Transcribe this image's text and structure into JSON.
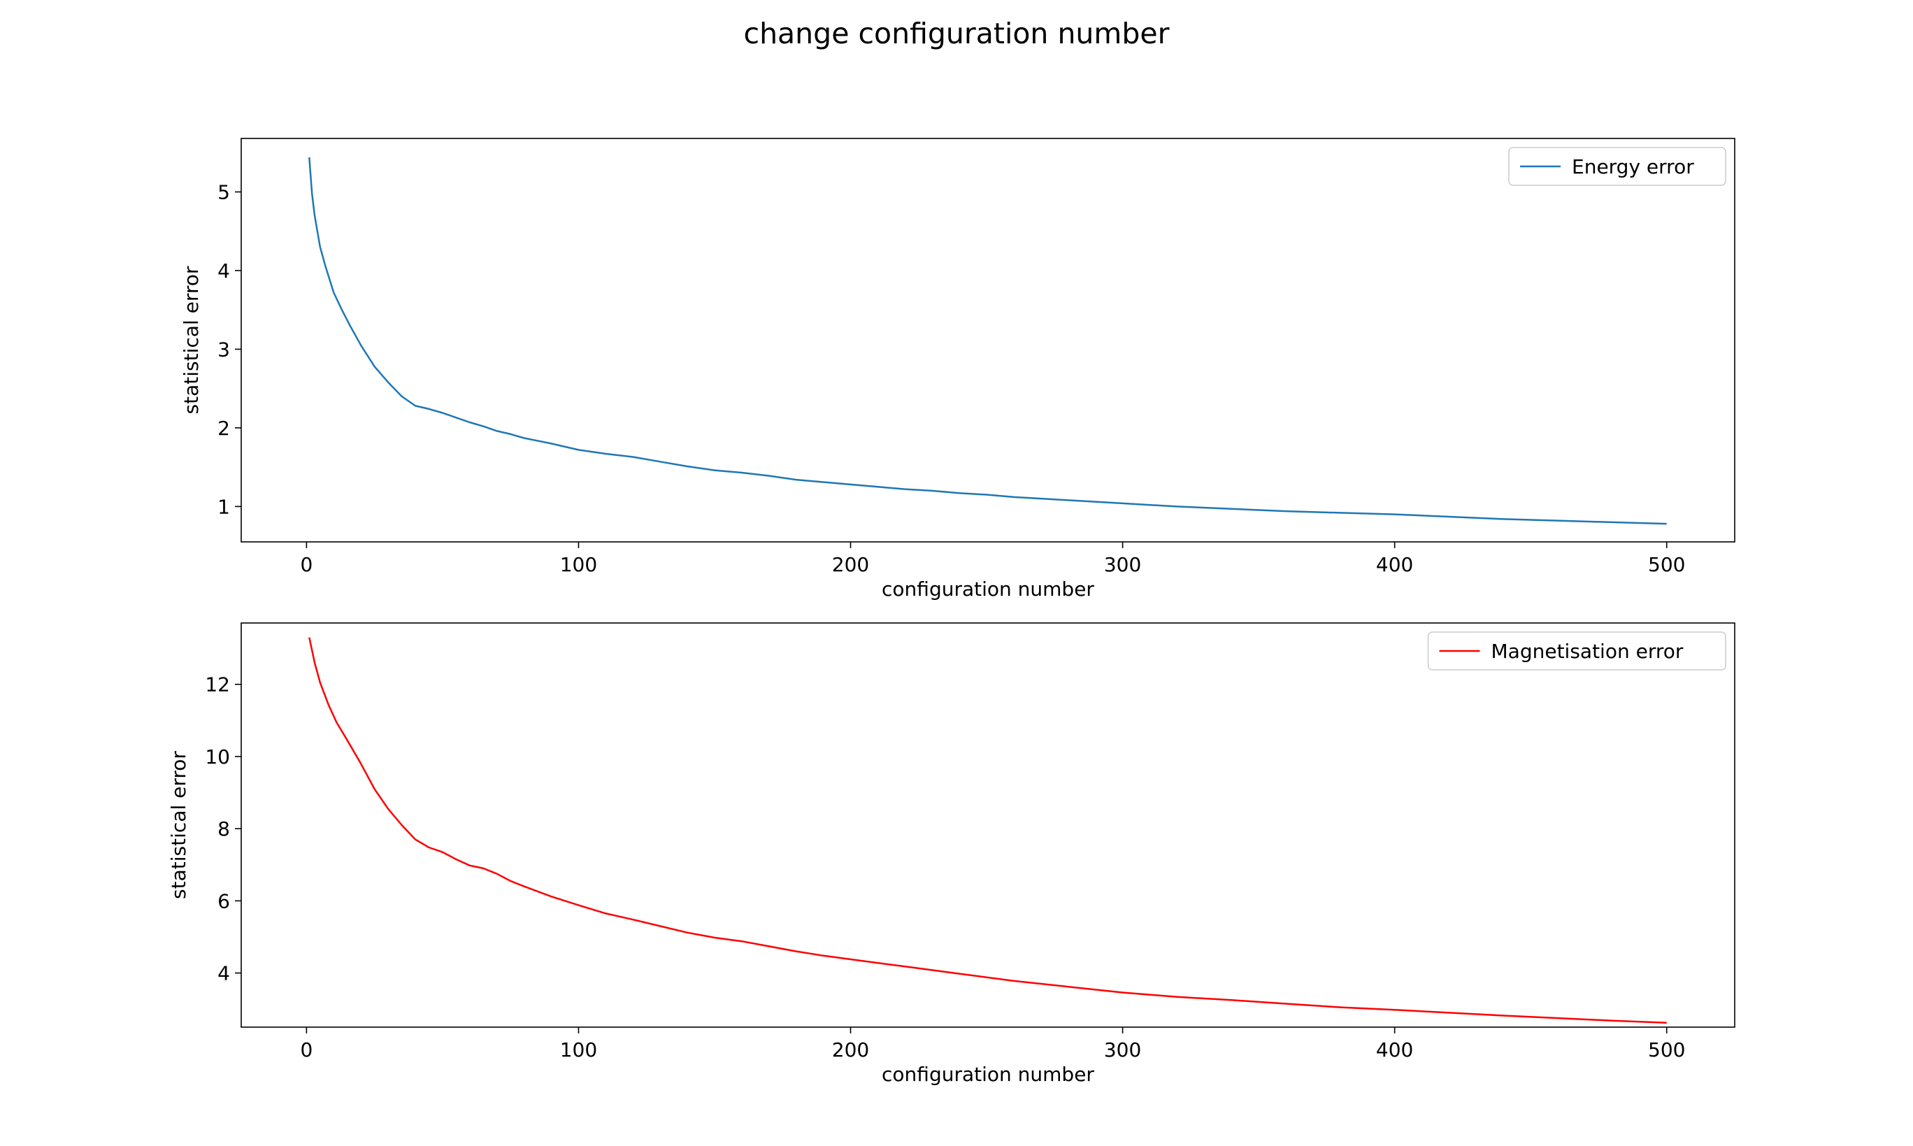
{
  "figure": {
    "title": "change configuration number"
  },
  "chart_data": [
    {
      "type": "line",
      "xlabel": "configuration number",
      "ylabel": "statistical error",
      "xlim": [
        -24,
        525
      ],
      "ylim": [
        0.55,
        5.68
      ],
      "xticks": [
        0,
        100,
        200,
        300,
        400,
        500
      ],
      "yticks": [
        1,
        2,
        3,
        4,
        5
      ],
      "grid": false,
      "legend_position": "top-right",
      "series": [
        {
          "name": "Energy error",
          "color": "#1f77b4",
          "x": [
            1,
            2,
            3,
            5,
            7,
            10,
            13,
            16,
            20,
            25,
            30,
            35,
            40,
            45,
            50,
            55,
            60,
            65,
            70,
            75,
            80,
            90,
            100,
            110,
            120,
            130,
            140,
            150,
            160,
            170,
            180,
            190,
            200,
            210,
            220,
            230,
            240,
            250,
            260,
            270,
            280,
            290,
            300,
            320,
            340,
            360,
            380,
            400,
            420,
            440,
            460,
            480,
            500
          ],
          "y": [
            5.44,
            4.98,
            4.7,
            4.3,
            4.05,
            3.72,
            3.5,
            3.3,
            3.05,
            2.78,
            2.58,
            2.4,
            2.28,
            2.24,
            2.19,
            2.13,
            2.07,
            2.02,
            1.96,
            1.92,
            1.87,
            1.8,
            1.72,
            1.67,
            1.63,
            1.57,
            1.51,
            1.46,
            1.43,
            1.39,
            1.34,
            1.31,
            1.28,
            1.25,
            1.22,
            1.2,
            1.17,
            1.15,
            1.12,
            1.1,
            1.08,
            1.06,
            1.04,
            1.0,
            0.97,
            0.94,
            0.92,
            0.9,
            0.87,
            0.84,
            0.82,
            0.8,
            0.78
          ]
        }
      ]
    },
    {
      "type": "line",
      "xlabel": "configuration number",
      "ylabel": "statistical error",
      "xlim": [
        -24,
        525
      ],
      "ylim": [
        2.5,
        13.7
      ],
      "xticks": [
        0,
        100,
        200,
        300,
        400,
        500
      ],
      "yticks": [
        4,
        6,
        8,
        10,
        12
      ],
      "grid": false,
      "legend_position": "top-right",
      "series": [
        {
          "name": "Magnetisation error",
          "color": "#ff0000",
          "x": [
            1,
            3,
            5,
            8,
            11,
            15,
            20,
            25,
            30,
            35,
            40,
            45,
            50,
            55,
            60,
            65,
            70,
            75,
            80,
            90,
            100,
            110,
            120,
            130,
            140,
            150,
            160,
            170,
            180,
            190,
            200,
            220,
            240,
            260,
            280,
            300,
            320,
            340,
            360,
            380,
            400,
            420,
            440,
            460,
            480,
            500
          ],
          "y": [
            13.3,
            12.6,
            12.05,
            11.45,
            10.95,
            10.45,
            9.8,
            9.1,
            8.55,
            8.1,
            7.7,
            7.48,
            7.35,
            7.15,
            6.98,
            6.9,
            6.75,
            6.55,
            6.4,
            6.12,
            5.88,
            5.65,
            5.48,
            5.3,
            5.12,
            4.98,
            4.88,
            4.74,
            4.6,
            4.48,
            4.38,
            4.18,
            3.98,
            3.78,
            3.62,
            3.46,
            3.34,
            3.25,
            3.15,
            3.05,
            2.98,
            2.9,
            2.82,
            2.75,
            2.68,
            2.62
          ]
        }
      ]
    }
  ]
}
